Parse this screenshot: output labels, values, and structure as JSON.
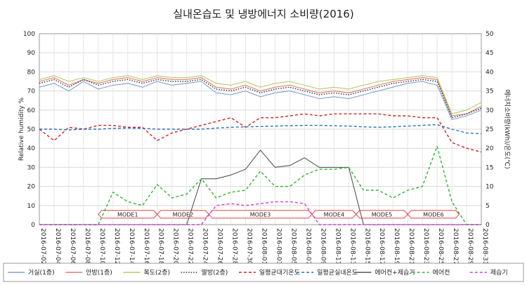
{
  "chart_data": {
    "type": "line",
    "title": "실내온습도 및 냉방에너지 소비량(2016)",
    "ylabel_left": "Relative humidity %",
    "ylabel_right": "에너지소비량(kWh)/온도(℃)",
    "ylim_left": [
      0,
      100
    ],
    "ylim_right": [
      0,
      50
    ],
    "yticks_left": [
      "0",
      "10",
      "20",
      "30",
      "40",
      "50",
      "60",
      "70",
      "80",
      "90",
      "100"
    ],
    "yticks_right": [
      "0",
      "5",
      "10",
      "15",
      "20",
      "25",
      "30",
      "35",
      "40",
      "45",
      "50"
    ],
    "grid": true,
    "legend_position": "bottom",
    "x_tick_labels": [
      "2016-07-02",
      "2016-07-04",
      "2016-07-06",
      "2016-07-08",
      "2016-07-10",
      "2016-07-12",
      "2016-07-14",
      "2016-07-16",
      "2016-07-18",
      "2016-07-20",
      "2016-07-22",
      "2016-07-24",
      "2016-07-26",
      "2016-07-28",
      "2016-07-30",
      "2016-08-01",
      "2016-08-03",
      "2016-08-05",
      "2016-08-07",
      "2016-08-09",
      "2016-08-11",
      "2016-08-13",
      "2016-08-15",
      "2016-08-17",
      "2016-08-19",
      "2016-08-21",
      "2016-08-23",
      "2016-08-25",
      "2016-08-27",
      "2016-08-29",
      "2016-08-31"
    ],
    "series": [
      {
        "name": "거실(1층)",
        "axis": "left",
        "color": "#7f9fcf",
        "dash": "solid",
        "x": [
          "2016-07-02",
          "2016-07-04",
          "2016-07-06",
          "2016-07-08",
          "2016-07-10",
          "2016-07-12",
          "2016-07-14",
          "2016-07-16",
          "2016-07-18",
          "2016-07-20",
          "2016-07-22",
          "2016-07-24",
          "2016-07-26",
          "2016-07-28",
          "2016-07-30",
          "2016-08-01",
          "2016-08-03",
          "2016-08-05",
          "2016-08-07",
          "2016-08-09",
          "2016-08-11",
          "2016-08-13",
          "2016-08-15",
          "2016-08-17",
          "2016-08-19",
          "2016-08-21",
          "2016-08-23",
          "2016-08-25",
          "2016-08-27",
          "2016-08-29",
          "2016-08-31"
        ],
        "values": [
          72,
          74,
          70,
          75,
          71,
          73,
          74,
          72,
          75,
          73,
          74,
          75,
          69,
          68,
          70,
          67,
          69,
          70,
          68,
          66,
          67,
          66,
          68,
          70,
          72,
          74,
          75,
          73,
          55,
          57,
          60
        ]
      },
      {
        "name": "안방(1층)",
        "axis": "left",
        "color": "#e07b6b",
        "dash": "solid",
        "x": [
          "2016-07-02",
          "2016-07-04",
          "2016-07-06",
          "2016-07-08",
          "2016-07-10",
          "2016-07-12",
          "2016-07-14",
          "2016-07-16",
          "2016-07-18",
          "2016-07-20",
          "2016-07-22",
          "2016-07-24",
          "2016-07-26",
          "2016-07-28",
          "2016-07-30",
          "2016-08-01",
          "2016-08-03",
          "2016-08-05",
          "2016-08-07",
          "2016-08-09",
          "2016-08-11",
          "2016-08-13",
          "2016-08-15",
          "2016-08-17",
          "2016-08-19",
          "2016-08-21",
          "2016-08-23",
          "2016-08-25",
          "2016-08-27",
          "2016-08-29",
          "2016-08-31"
        ],
        "values": [
          75,
          77,
          73,
          76,
          74,
          76,
          77,
          75,
          77,
          76,
          76,
          77,
          72,
          71,
          73,
          70,
          72,
          73,
          71,
          69,
          70,
          69,
          71,
          73,
          75,
          76,
          77,
          76,
          57,
          58,
          62
        ]
      },
      {
        "name": "복도(2층)",
        "axis": "left",
        "color": "#b5c96a",
        "dash": "solid",
        "x": [
          "2016-07-02",
          "2016-07-04",
          "2016-07-06",
          "2016-07-08",
          "2016-07-10",
          "2016-07-12",
          "2016-07-14",
          "2016-07-16",
          "2016-07-18",
          "2016-07-20",
          "2016-07-22",
          "2016-07-24",
          "2016-07-26",
          "2016-07-28",
          "2016-07-30",
          "2016-08-01",
          "2016-08-03",
          "2016-08-05",
          "2016-08-07",
          "2016-08-09",
          "2016-08-11",
          "2016-08-13",
          "2016-08-15",
          "2016-08-17",
          "2016-08-19",
          "2016-08-21",
          "2016-08-23",
          "2016-08-25",
          "2016-08-27",
          "2016-08-29",
          "2016-08-31"
        ],
        "values": [
          76,
          78,
          75,
          77,
          75,
          77,
          78,
          76,
          78,
          77,
          77,
          78,
          74,
          73,
          75,
          72,
          74,
          75,
          73,
          71,
          72,
          71,
          73,
          75,
          76,
          77,
          78,
          77,
          58,
          60,
          64
        ]
      },
      {
        "name": "딸방(2층)",
        "axis": "left",
        "color": "#333333",
        "dash": "dotted",
        "x": [
          "2016-07-02",
          "2016-07-04",
          "2016-07-06",
          "2016-07-08",
          "2016-07-10",
          "2016-07-12",
          "2016-07-14",
          "2016-07-16",
          "2016-07-18",
          "2016-07-20",
          "2016-07-22",
          "2016-07-24",
          "2016-07-26",
          "2016-07-28",
          "2016-07-30",
          "2016-08-01",
          "2016-08-03",
          "2016-08-05",
          "2016-08-07",
          "2016-08-09",
          "2016-08-11",
          "2016-08-13",
          "2016-08-15",
          "2016-08-17",
          "2016-08-19",
          "2016-08-21",
          "2016-08-23",
          "2016-08-25",
          "2016-08-27",
          "2016-08-29",
          "2016-08-31"
        ],
        "values": [
          74,
          76,
          72,
          76,
          73,
          75,
          76,
          74,
          76,
          75,
          75,
          76,
          71,
          70,
          72,
          69,
          71,
          72,
          70,
          68,
          69,
          68,
          70,
          72,
          74,
          75,
          76,
          75,
          56,
          58,
          61
        ]
      },
      {
        "name": "일평균대기온도",
        "axis": "right",
        "color": "#d42020",
        "dash": "dashed",
        "x": [
          "2016-07-02",
          "2016-07-04",
          "2016-07-06",
          "2016-07-08",
          "2016-07-10",
          "2016-07-12",
          "2016-07-14",
          "2016-07-16",
          "2016-07-18",
          "2016-07-20",
          "2016-07-22",
          "2016-07-24",
          "2016-07-26",
          "2016-07-28",
          "2016-07-30",
          "2016-08-01",
          "2016-08-03",
          "2016-08-05",
          "2016-08-07",
          "2016-08-09",
          "2016-08-11",
          "2016-08-13",
          "2016-08-15",
          "2016-08-17",
          "2016-08-19",
          "2016-08-21",
          "2016-08-23",
          "2016-08-25",
          "2016-08-27",
          "2016-08-29",
          "2016-08-31"
        ],
        "values": [
          25,
          22,
          25.5,
          25,
          26,
          26,
          25.5,
          25.5,
          22,
          24,
          25,
          26,
          27,
          28,
          25.5,
          28,
          28,
          28.5,
          29,
          28.5,
          29,
          29,
          29,
          29,
          28.5,
          28.5,
          28,
          28,
          21.5,
          20,
          19
        ]
      },
      {
        "name": "일평균실내온도",
        "axis": "right",
        "color": "#2a6fb5",
        "dash": "dashed",
        "x": [
          "2016-07-02",
          "2016-07-04",
          "2016-07-06",
          "2016-07-08",
          "2016-07-10",
          "2016-07-12",
          "2016-07-14",
          "2016-07-16",
          "2016-07-18",
          "2016-07-20",
          "2016-07-22",
          "2016-07-24",
          "2016-07-26",
          "2016-07-28",
          "2016-07-30",
          "2016-08-01",
          "2016-08-03",
          "2016-08-05",
          "2016-08-07",
          "2016-08-09",
          "2016-08-11",
          "2016-08-13",
          "2016-08-15",
          "2016-08-17",
          "2016-08-19",
          "2016-08-21",
          "2016-08-23",
          "2016-08-25",
          "2016-08-27",
          "2016-08-29",
          "2016-08-31"
        ],
        "values": [
          25,
          25,
          24.8,
          25,
          25,
          25.2,
          25.3,
          25.2,
          25,
          25,
          25,
          25,
          25.3,
          25.5,
          25.6,
          25.7,
          25.8,
          25.9,
          26,
          26,
          25.9,
          25.8,
          25.6,
          25.5,
          25.6,
          25.8,
          26,
          26.2,
          25,
          24,
          23.8
        ]
      },
      {
        "name": "에어컨+제습기",
        "axis": "right",
        "color": "#555555",
        "dash": "solid",
        "x": [
          "2016-07-02",
          "2016-07-04",
          "2016-07-06",
          "2016-07-08",
          "2016-07-10",
          "2016-07-12",
          "2016-07-14",
          "2016-07-16",
          "2016-07-18",
          "2016-07-20",
          "2016-07-22",
          "2016-07-24",
          "2016-07-26",
          "2016-07-28",
          "2016-07-30",
          "2016-08-01",
          "2016-08-03",
          "2016-08-05",
          "2016-08-07",
          "2016-08-09",
          "2016-08-11",
          "2016-08-13",
          "2016-08-15",
          "2016-08-17",
          "2016-08-19",
          "2016-08-21",
          "2016-08-23",
          "2016-08-25",
          "2016-08-27",
          "2016-08-29",
          "2016-08-31"
        ],
        "values": [
          0,
          0,
          0,
          0,
          0,
          0,
          0,
          0,
          0,
          0,
          0,
          12,
          12,
          13,
          14.5,
          19.5,
          15,
          15.5,
          17.5,
          15,
          15,
          15,
          0,
          0,
          0,
          0,
          0,
          0,
          0,
          0,
          0
        ]
      },
      {
        "name": "에어컨",
        "axis": "right",
        "color": "#2fb52f",
        "dash": "dashed",
        "x": [
          "2016-07-02",
          "2016-07-04",
          "2016-07-06",
          "2016-07-08",
          "2016-07-10",
          "2016-07-12",
          "2016-07-14",
          "2016-07-16",
          "2016-07-18",
          "2016-07-20",
          "2016-07-22",
          "2016-07-24",
          "2016-07-26",
          "2016-07-28",
          "2016-07-30",
          "2016-08-01",
          "2016-08-03",
          "2016-08-05",
          "2016-08-07",
          "2016-08-09",
          "2016-08-11",
          "2016-08-13",
          "2016-08-15",
          "2016-08-17",
          "2016-08-19",
          "2016-08-21",
          "2016-08-23",
          "2016-08-25",
          "2016-08-27",
          "2016-08-29",
          "2016-08-31"
        ],
        "values": [
          0,
          0,
          0,
          0,
          0,
          8.5,
          6,
          5,
          10.5,
          7,
          8,
          12,
          7,
          8.5,
          9,
          14,
          10,
          10,
          13,
          14.5,
          14.5,
          15,
          9,
          9,
          7,
          9,
          10,
          20.5,
          6,
          0,
          0
        ]
      },
      {
        "name": "제습기",
        "axis": "right",
        "color": "#d23fd2",
        "dash": "dashed",
        "x": [
          "2016-07-02",
          "2016-07-04",
          "2016-07-06",
          "2016-07-08",
          "2016-07-10",
          "2016-07-12",
          "2016-07-14",
          "2016-07-16",
          "2016-07-18",
          "2016-07-20",
          "2016-07-22",
          "2016-07-24",
          "2016-07-26",
          "2016-07-28",
          "2016-07-30",
          "2016-08-01",
          "2016-08-03",
          "2016-08-05",
          "2016-08-07",
          "2016-08-09",
          "2016-08-11",
          "2016-08-13",
          "2016-08-15",
          "2016-08-17",
          "2016-08-19",
          "2016-08-21",
          "2016-08-23",
          "2016-08-25",
          "2016-08-27",
          "2016-08-29",
          "2016-08-31"
        ],
        "values": [
          0,
          0,
          0,
          0,
          0,
          0,
          0,
          0,
          0,
          0,
          0,
          0,
          5,
          5.5,
          5,
          5.5,
          6,
          6,
          5.5,
          0,
          0,
          0,
          0,
          0,
          0,
          0,
          0,
          0,
          0,
          0,
          0
        ]
      }
    ],
    "annotations": [
      {
        "label": "MODE1",
        "from": "2016-07-10",
        "to": "2016-07-18"
      },
      {
        "label": "MODE2",
        "from": "2016-07-18",
        "to": "2016-07-25"
      },
      {
        "label": "MODE3",
        "from": "2016-07-25",
        "to": "2016-08-08"
      },
      {
        "label": "MODE4",
        "from": "2016-08-08",
        "to": "2016-08-14"
      },
      {
        "label": "MODE5",
        "from": "2016-08-14",
        "to": "2016-08-21"
      },
      {
        "label": "MODE6",
        "from": "2016-08-21",
        "to": "2016-08-28"
      }
    ]
  }
}
